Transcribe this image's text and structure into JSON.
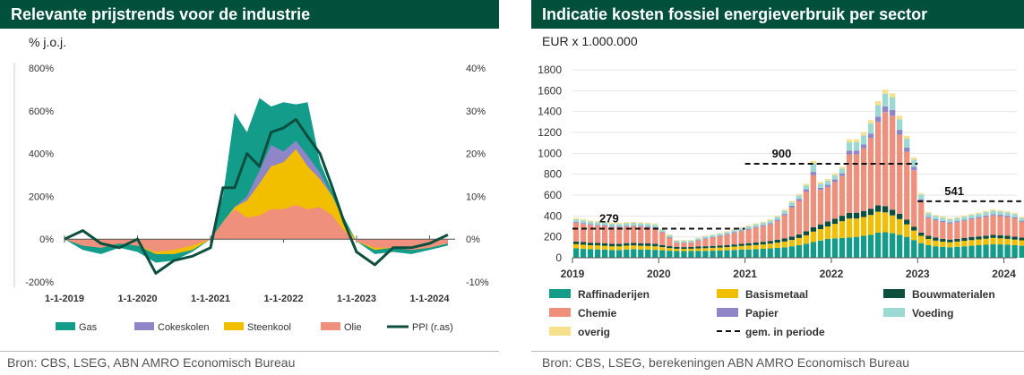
{
  "left": {
    "title": "Relevante prijstrends voor de industrie",
    "unit": "% j.o.j.",
    "source": "Bron: CBS, LSEG, ABN AMRO Economisch Bureau"
  },
  "right": {
    "title": "Indicatie kosten fossiel energieverbruik per sector",
    "unit": "EUR x 1.000.000",
    "source": "Bron: CBS, LSEG, berekeningen ABN AMRO Economisch Bureau"
  },
  "colors": {
    "gas": "#139c8a",
    "cokes": "#8e86c6",
    "steenkool": "#f2be00",
    "olie": "#ef907c",
    "ppi": "#0d4f3f",
    "raff": "#139c8a",
    "basis": "#f2be00",
    "bouw": "#0d4f3f",
    "chemie": "#ef907c",
    "papier": "#8e86c6",
    "voeding": "#9bd9d2",
    "overig": "#f7e08c"
  },
  "chart_data": [
    {
      "type": "area",
      "xlabel": "",
      "ylabel": "% j.o.j.",
      "ylim": [
        -200,
        800
      ],
      "y2lim": [
        -10,
        40
      ],
      "yticks": [
        "800%",
        "600%",
        "400%",
        "200%",
        "0%",
        "-200%"
      ],
      "y2ticks": [
        "40%",
        "30%",
        "20%",
        "10%",
        "0%",
        "-10%"
      ],
      "xticks": [
        "1-1-2019",
        "1-1-2020",
        "1-1-2021",
        "1-1-2022",
        "1-1-2023",
        "1-1-2024"
      ],
      "legend_position": "bottom",
      "x": [
        2019.0,
        2019.25,
        2019.5,
        2019.75,
        2020.0,
        2020.25,
        2020.5,
        2020.75,
        2021.0,
        2021.17,
        2021.33,
        2021.5,
        2021.67,
        2021.83,
        2022.0,
        2022.17,
        2022.33,
        2022.5,
        2022.67,
        2022.83,
        2023.0,
        2023.25,
        2023.5,
        2023.75,
        2024.0,
        2024.25
      ],
      "series": [
        {
          "name": "Olie",
          "values": [
            0,
            -30,
            -40,
            -20,
            -30,
            -60,
            -50,
            -30,
            0,
            80,
            140,
            100,
            110,
            140,
            140,
            160,
            140,
            150,
            110,
            40,
            -10,
            -40,
            -40,
            -50,
            -40,
            -20
          ]
        },
        {
          "name": "Steenkool",
          "values": [
            0,
            0,
            0,
            0,
            0,
            -10,
            -20,
            -20,
            0,
            0,
            10,
            80,
            150,
            200,
            220,
            260,
            200,
            130,
            90,
            40,
            0,
            -10,
            0,
            0,
            0,
            0
          ]
        },
        {
          "name": "Cokeskolen",
          "values": [
            0,
            0,
            0,
            0,
            0,
            0,
            0,
            0,
            0,
            0,
            0,
            20,
            60,
            100,
            50,
            40,
            50,
            30,
            0,
            0,
            0,
            0,
            0,
            0,
            0,
            0
          ]
        },
        {
          "name": "Gas",
          "values": [
            0,
            -20,
            -30,
            -20,
            -30,
            -40,
            -30,
            -10,
            0,
            120,
            440,
            300,
            340,
            180,
            230,
            170,
            250,
            50,
            20,
            20,
            0,
            -20,
            -20,
            -20,
            -10,
            -10
          ]
        },
        {
          "name": "PPI (r.as)",
          "axis": "right",
          "values": [
            0,
            2,
            -1,
            -2,
            0,
            -8,
            -5,
            -4,
            -2,
            12,
            12,
            20,
            17,
            25,
            26,
            28,
            24,
            20,
            12,
            4,
            -3,
            -6,
            -2,
            -2,
            -1,
            1
          ]
        }
      ]
    },
    {
      "type": "bar",
      "stacked": true,
      "xlabel": "",
      "ylabel": "EUR x 1.000.000",
      "ylim": [
        0,
        1800
      ],
      "yticks": [
        0,
        200,
        400,
        600,
        800,
        1000,
        1200,
        1400,
        1600,
        1800
      ],
      "xticks": [
        "2019",
        "2020",
        "2021",
        "2022",
        "2023",
        "2024"
      ],
      "x_start": 2019.0,
      "x_step": 0.0833333,
      "legend_position": "bottom",
      "series": [
        {
          "name": "Raffinaderijen",
          "values": [
            90,
            85,
            82,
            80,
            78,
            75,
            75,
            80,
            82,
            80,
            78,
            76,
            72,
            68,
            65,
            64,
            65,
            66,
            66,
            68,
            70,
            72,
            75,
            78,
            80,
            82,
            86,
            90,
            95,
            100,
            110,
            120,
            135,
            150,
            165,
            180,
            185,
            190,
            195,
            200,
            210,
            220,
            240,
            245,
            235,
            220,
            200,
            170,
            140,
            120,
            110,
            105,
            100,
            105,
            110,
            115,
            120,
            125,
            130,
            128,
            125,
            120,
            115
          ]
        },
        {
          "name": "Basismetaal",
          "values": [
            40,
            40,
            38,
            38,
            37,
            35,
            35,
            36,
            36,
            35,
            35,
            34,
            30,
            25,
            22,
            22,
            22,
            24,
            26,
            27,
            28,
            30,
            32,
            35,
            38,
            40,
            42,
            45,
            50,
            55,
            60,
            70,
            80,
            100,
            110,
            120,
            140,
            160,
            180,
            175,
            180,
            190,
            200,
            190,
            170,
            150,
            120,
            90,
            70,
            60,
            55,
            50,
            48,
            50,
            52,
            54,
            56,
            58,
            60,
            58,
            56,
            54,
            52
          ]
        },
        {
          "name": "Bouwmaterialen",
          "values": [
            25,
            25,
            24,
            24,
            24,
            24,
            24,
            24,
            24,
            24,
            24,
            24,
            20,
            18,
            16,
            16,
            16,
            17,
            18,
            18,
            18,
            19,
            20,
            21,
            22,
            24,
            25,
            26,
            28,
            30,
            32,
            34,
            38,
            42,
            45,
            48,
            50,
            52,
            55,
            56,
            58,
            60,
            62,
            60,
            55,
            50,
            45,
            38,
            32,
            30,
            28,
            27,
            26,
            26,
            27,
            28,
            28,
            29,
            30,
            30,
            29,
            28,
            27
          ]
        },
        {
          "name": "Chemie",
          "values": [
            180,
            175,
            170,
            165,
            165,
            160,
            158,
            158,
            160,
            158,
            155,
            150,
            120,
            80,
            40,
            40,
            40,
            55,
            70,
            80,
            90,
            100,
            110,
            120,
            130,
            140,
            150,
            160,
            180,
            220,
            280,
            320,
            380,
            500,
            330,
            330,
            350,
            380,
            560,
            560,
            600,
            680,
            800,
            900,
            900,
            760,
            650,
            540,
            300,
            170,
            165,
            160,
            155,
            160,
            165,
            170,
            175,
            180,
            185,
            183,
            180,
            175,
            150
          ]
        },
        {
          "name": "Papier",
          "values": [
            8,
            8,
            8,
            8,
            8,
            8,
            8,
            8,
            8,
            8,
            8,
            8,
            7,
            6,
            5,
            5,
            5,
            5,
            6,
            6,
            6,
            7,
            7,
            8,
            8,
            9,
            9,
            10,
            12,
            14,
            16,
            18,
            22,
            30,
            20,
            22,
            24,
            26,
            36,
            36,
            38,
            40,
            50,
            55,
            55,
            45,
            40,
            32,
            18,
            12,
            11,
            11,
            10,
            10,
            11,
            11,
            11,
            12,
            12,
            12,
            12,
            11,
            10
          ]
        },
        {
          "name": "Voeding",
          "values": [
            25,
            25,
            24,
            24,
            24,
            24,
            24,
            24,
            24,
            24,
            24,
            24,
            20,
            18,
            16,
            16,
            16,
            17,
            18,
            18,
            18,
            19,
            20,
            21,
            22,
            24,
            25,
            26,
            28,
            30,
            32,
            34,
            38,
            80,
            40,
            40,
            42,
            45,
            80,
            80,
            85,
            95,
            110,
            120,
            120,
            100,
            85,
            70,
            45,
            32,
            30,
            30,
            29,
            29,
            30,
            30,
            31,
            32,
            33,
            32,
            31,
            30,
            28
          ]
        },
        {
          "name": "overig",
          "values": [
            12,
            12,
            11,
            11,
            11,
            11,
            11,
            11,
            11,
            11,
            11,
            11,
            9,
            8,
            7,
            7,
            7,
            7,
            8,
            8,
            8,
            8,
            9,
            9,
            10,
            10,
            10,
            11,
            12,
            12,
            13,
            14,
            15,
            25,
            16,
            16,
            17,
            18,
            28,
            28,
            30,
            33,
            38,
            40,
            40,
            34,
            28,
            22,
            15,
            12,
            11,
            11,
            11,
            11,
            11,
            11,
            12,
            12,
            12,
            12,
            12,
            11,
            10
          ]
        },
        {
          "name": "gem. in periode",
          "type": "line",
          "dashed": true,
          "segments": [
            {
              "from": 2019,
              "to": 2021,
              "value": 279
            },
            {
              "from": 2021,
              "to": 2023,
              "value": 900
            },
            {
              "from": 2023,
              "to": 2024.2,
              "value": 541
            }
          ]
        }
      ],
      "annotations": [
        "279",
        "900",
        "541"
      ]
    }
  ]
}
